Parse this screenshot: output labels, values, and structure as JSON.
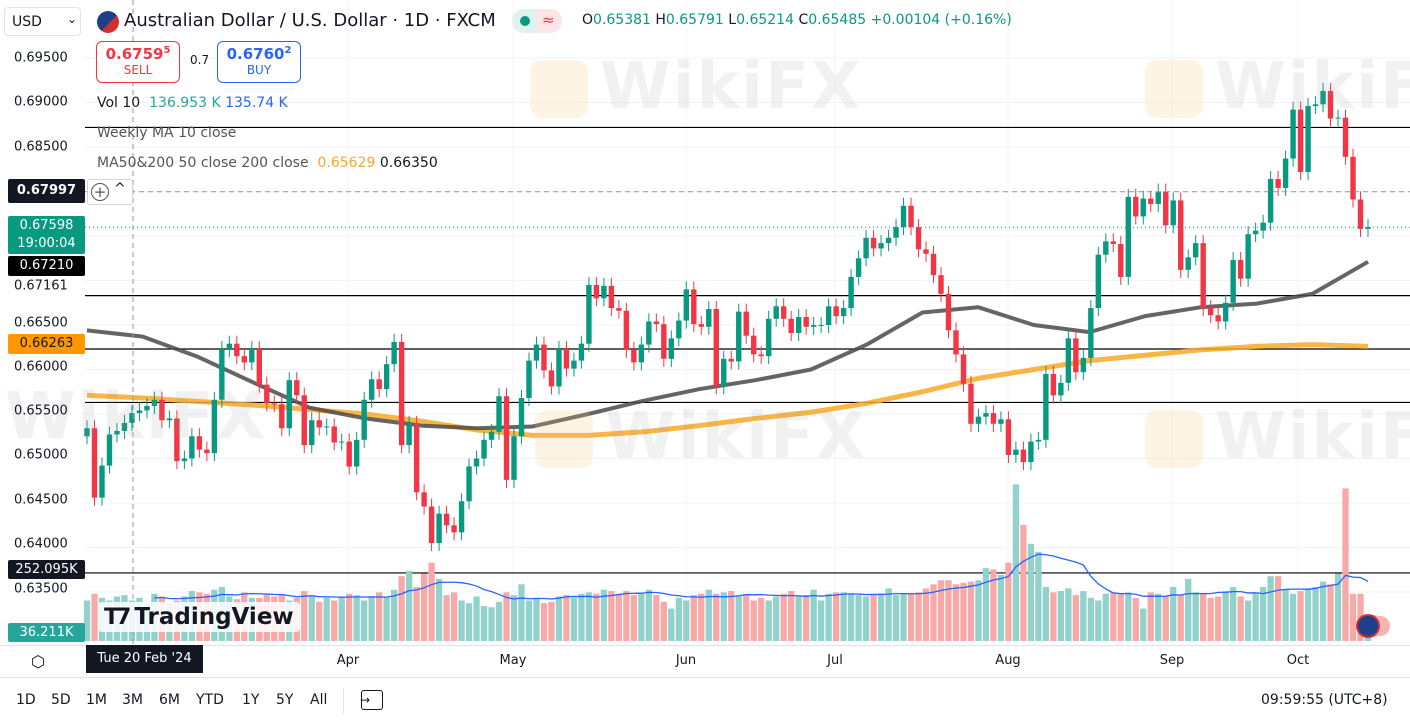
{
  "header": {
    "currency_select": "USD",
    "title": "Australian Dollar / U.S. Dollar · 1D · FXCM",
    "ohlc": {
      "o_label": "O",
      "o": "0.65381",
      "h_label": "H",
      "h": "0.65791",
      "l_label": "L",
      "l": "0.65214",
      "c_label": "C",
      "c": "0.65485",
      "change": "+0.00104 (+0.16%)"
    },
    "sell": {
      "price_main": "0.6759",
      "price_sup": "5",
      "label": "SELL"
    },
    "spread": "0.7",
    "buy": {
      "price_main": "0.6760",
      "price_sup": "2",
      "label": "BUY"
    }
  },
  "indicators": {
    "vol": {
      "name": "Vol 10",
      "value1": "136.953 K",
      "value2": "135.74 K"
    },
    "weekly_ma": "Weekly MA 10 close",
    "ma": {
      "name": "MA50&200 50 close 200 close",
      "value1": "0.65629",
      "value2": "0.66350"
    }
  },
  "price_axis": {
    "ticks": [
      "0.69500",
      "0.69000",
      "0.68500",
      "0.67161",
      "0.66500",
      "0.66000",
      "0.65500",
      "0.65000",
      "0.64500",
      "0.64000",
      "0.63500"
    ],
    "crosshair_price": "0.67997",
    "last_price": "0.67598",
    "countdown": "19:00:04",
    "ma50_value": "0.67210",
    "ma200_value": "0.66263",
    "volume_line_value": "252.095K",
    "last_volume": "36.211K"
  },
  "time_axis": {
    "crosshair_date": "Tue 20 Feb '24",
    "months": [
      "Apr",
      "May",
      "Jun",
      "Jul",
      "Aug",
      "Sep",
      "Oct"
    ]
  },
  "bottom_bar": {
    "ranges": [
      "1D",
      "5D",
      "1M",
      "3M",
      "6M",
      "YTD",
      "1Y",
      "5Y",
      "All"
    ],
    "clock": "09:59:55 (UTC+8)"
  },
  "branding": {
    "logo": "TradingView",
    "watermark": "WikiFX"
  },
  "colors": {
    "up": "#089981",
    "down": "#f23645",
    "ma50": "#4a4a4a",
    "ma200": "#f9a825",
    "vol_ma": "#2962ff",
    "sell": "#f23645",
    "buy": "#2962ff"
  },
  "chart_data": {
    "type": "candlestick",
    "symbol": "AUD/USD",
    "interval": "1D",
    "y_range": [
      0.634,
      0.6975
    ],
    "first_open": 0.6525,
    "close": [
      0.6534,
      0.6456,
      0.6492,
      0.6527,
      0.6531,
      0.654,
      0.6551,
      0.6554,
      0.6559,
      0.6566,
      0.6543,
      0.6545,
      0.6497,
      0.65,
      0.6525,
      0.651,
      0.6506,
      0.6566,
      0.6623,
      0.6629,
      0.6615,
      0.6608,
      0.6623,
      0.6583,
      0.6562,
      0.6561,
      0.6534,
      0.6588,
      0.6571,
      0.6515,
      0.6543,
      0.6535,
      0.6536,
      0.6518,
      0.6519,
      0.6491,
      0.6521,
      0.6566,
      0.6589,
      0.6578,
      0.6606,
      0.6631,
      0.6515,
      0.6539,
      0.6462,
      0.6446,
      0.6405,
      0.6438,
      0.6425,
      0.6417,
      0.6452,
      0.6491,
      0.65,
      0.6521,
      0.653,
      0.657,
      0.6476,
      0.6525,
      0.6568,
      0.661,
      0.6628,
      0.6599,
      0.6581,
      0.6623,
      0.6601,
      0.661,
      0.6629,
      0.6695,
      0.668,
      0.6694,
      0.6669,
      0.6666,
      0.6622,
      0.6608,
      0.6628,
      0.6654,
      0.6651,
      0.6612,
      0.6635,
      0.6655,
      0.669,
      0.6651,
      0.6648,
      0.6668,
      0.6581,
      0.6612,
      0.6609,
      0.6665,
      0.6638,
      0.6617,
      0.6615,
      0.6657,
      0.6671,
      0.6657,
      0.6641,
      0.6659,
      0.6648,
      0.665,
      0.665,
      0.6671,
      0.666,
      0.6669,
      0.6704,
      0.6725,
      0.6748,
      0.6736,
      0.6742,
      0.6748,
      0.676,
      0.6784,
      0.676,
      0.6735,
      0.673,
      0.6706,
      0.6685,
      0.6644,
      0.6617,
      0.6584,
      0.6539,
      0.6547,
      0.6551,
      0.6539,
      0.6544,
      0.6504,
      0.651,
      0.6496,
      0.6519,
      0.6521,
      0.6595,
      0.6571,
      0.6585,
      0.6635,
      0.6597,
      0.6613,
      0.6669,
      0.6729,
      0.6744,
      0.6741,
      0.6704,
      0.6794,
      0.6772,
      0.6792,
      0.6786,
      0.68,
      0.6762,
      0.679,
      0.6712,
      0.6726,
      0.6742,
      0.6669,
      0.6661,
      0.6654,
      0.6675,
      0.6723,
      0.6702,
      0.6752,
      0.6756,
      0.6765,
      0.6814,
      0.6804,
      0.6837,
      0.6892,
      0.6822,
      0.6896,
      0.6898,
      0.6913,
      0.6882,
      0.6883,
      0.6839,
      0.6791,
      0.6758,
      0.676
    ],
    "volume_k": [
      150,
      175,
      160,
      150,
      165,
      170,
      150,
      160,
      140,
      175,
      165,
      140,
      150,
      165,
      185,
      180,
      175,
      190,
      200,
      165,
      155,
      180,
      160,
      160,
      175,
      165,
      170,
      150,
      160,
      185,
      170,
      145,
      160,
      150,
      165,
      175,
      170,
      150,
      165,
      180,
      165,
      190,
      240,
      260,
      200,
      250,
      290,
      230,
      170,
      180,
      150,
      140,
      165,
      130,
      125,
      145,
      180,
      170,
      210,
      150,
      160,
      140,
      145,
      165,
      170,
      160,
      175,
      180,
      175,
      190,
      185,
      175,
      185,
      170,
      175,
      190,
      170,
      145,
      120,
      160,
      150,
      170,
      175,
      190,
      175,
      180,
      185,
      165,
      170,
      150,
      160,
      150,
      165,
      175,
      185,
      165,
      170,
      190,
      150,
      175,
      180,
      180,
      175,
      170,
      165,
      170,
      175,
      195,
      170,
      175,
      175,
      180,
      195,
      210,
      225,
      225,
      210,
      215,
      220,
      225,
      270,
      265,
      245,
      290,
      580,
      430,
      360,
      330,
      200,
      180,
      185,
      195,
      170,
      185,
      160,
      150,
      175,
      180,
      175,
      180,
      160,
      120,
      180,
      175,
      165,
      200,
      170,
      230,
      180,
      175,
      160,
      165,
      185,
      200,
      165,
      150,
      175,
      200,
      240,
      240,
      190,
      175,
      185,
      195,
      200,
      220,
      210,
      250,
      565,
      175,
      175,
      36
    ],
    "ma50_samples": [
      0.6644,
      0.6637,
      0.6614,
      0.6585,
      0.6557,
      0.6545,
      0.6537,
      0.6534,
      0.6536,
      0.655,
      0.6565,
      0.6578,
      0.6588,
      0.66,
      0.6628,
      0.6664,
      0.667,
      0.665,
      0.6642,
      0.666,
      0.667,
      0.6674,
      0.6685,
      0.6721
    ],
    "ma200_samples": [
      0.6571,
      0.6568,
      0.6564,
      0.656,
      0.6555,
      0.655,
      0.6542,
      0.6532,
      0.6526,
      0.6526,
      0.653,
      0.6537,
      0.6545,
      0.6552,
      0.6562,
      0.6575,
      0.659,
      0.66,
      0.661,
      0.6616,
      0.6622,
      0.6626,
      0.6628,
      0.6626
    ],
    "horizontal_levels": [
      0.6872,
      0.6683,
      0.6623,
      0.6563
    ],
    "volume_level_k": 252.095,
    "crosshair_price": 0.67997,
    "last_price": 0.67598
  }
}
